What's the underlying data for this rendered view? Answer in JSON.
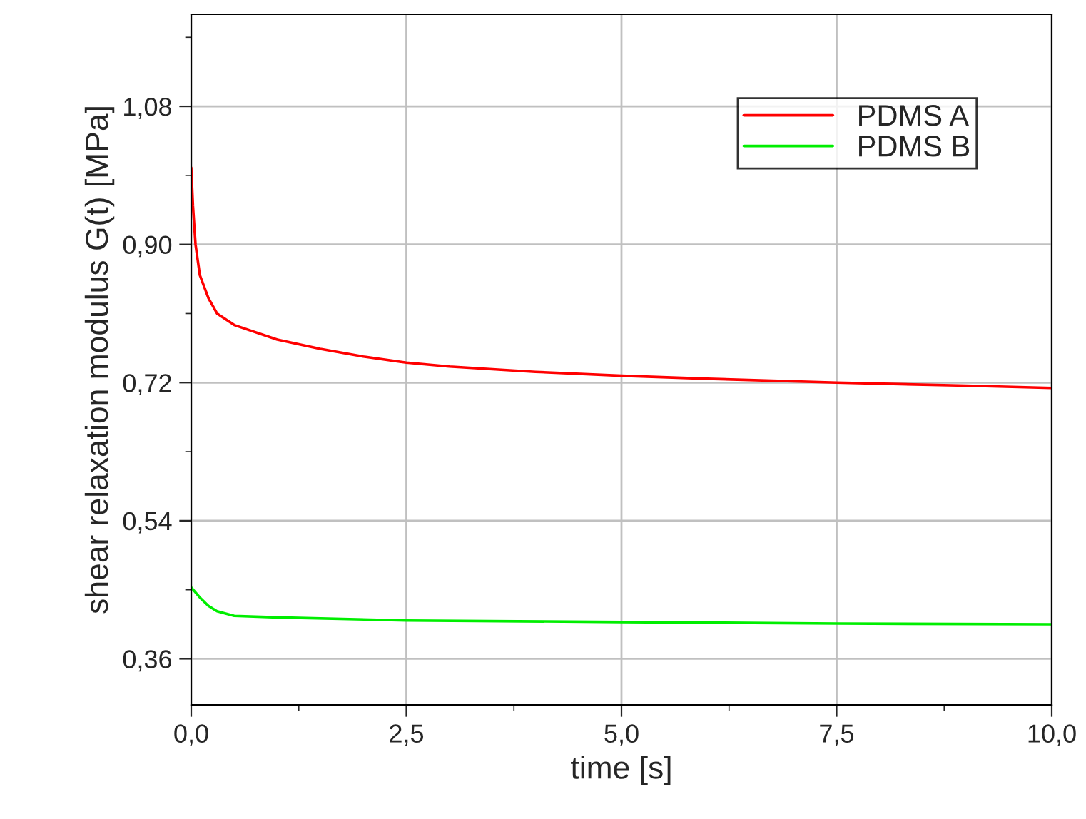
{
  "chart_data": {
    "type": "line",
    "xlabel": "time [s]",
    "ylabel": "shear relaxation modulus G(t) [MPa]",
    "xlim": [
      0,
      10
    ],
    "ylim": [
      0.3,
      1.2
    ],
    "xticks": [
      {
        "value": 0,
        "label": "0,0"
      },
      {
        "value": 2.5,
        "label": "2,5"
      },
      {
        "value": 5,
        "label": "5,0"
      },
      {
        "value": 7.5,
        "label": "7,5"
      },
      {
        "value": 10,
        "label": "10,0"
      }
    ],
    "yticks": [
      {
        "value": 0.36,
        "label": "0,36"
      },
      {
        "value": 0.54,
        "label": "0,54"
      },
      {
        "value": 0.72,
        "label": "0,72"
      },
      {
        "value": 0.9,
        "label": "0,90"
      },
      {
        "value": 1.08,
        "label": "1,08"
      }
    ],
    "grid": true,
    "legend": "top right",
    "series": [
      {
        "name": "PDMS A",
        "color": "#ff0000",
        "x": [
          0,
          0.02,
          0.05,
          0.1,
          0.2,
          0.3,
          0.5,
          1,
          1.5,
          2,
          2.5,
          3,
          4,
          5,
          6,
          7.5,
          9,
          10
        ],
        "values": [
          1.0,
          0.95,
          0.9,
          0.86,
          0.83,
          0.81,
          0.795,
          0.776,
          0.764,
          0.754,
          0.746,
          0.741,
          0.734,
          0.729,
          0.725,
          0.72,
          0.716,
          0.713
        ]
      },
      {
        "name": "PDMS B",
        "color": "#00ee00",
        "x": [
          0,
          0.1,
          0.2,
          0.3,
          0.5,
          1,
          2.5,
          5,
          7.5,
          10
        ],
        "values": [
          0.453,
          0.44,
          0.429,
          0.422,
          0.416,
          0.414,
          0.41,
          0.408,
          0.406,
          0.405
        ]
      }
    ]
  }
}
